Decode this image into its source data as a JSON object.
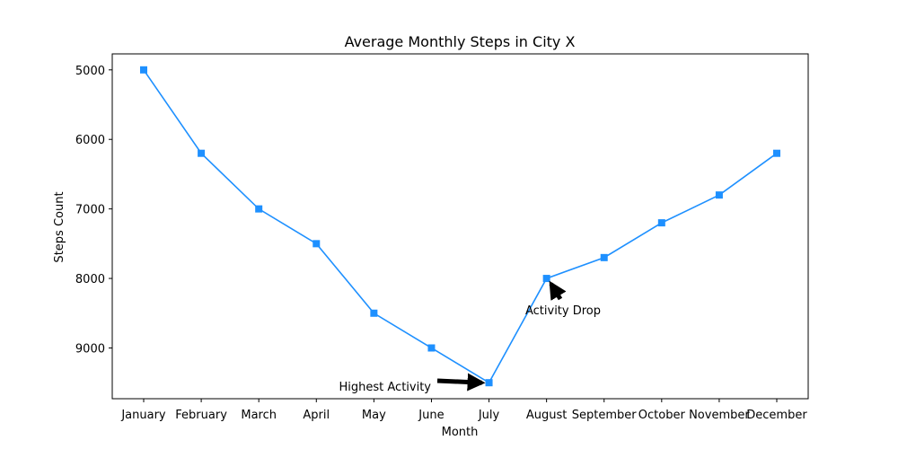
{
  "chart_data": {
    "type": "line",
    "title": "Average Monthly Steps in City X",
    "xlabel": "Month",
    "ylabel": "Steps Count",
    "categories": [
      "January",
      "February",
      "March",
      "April",
      "May",
      "June",
      "July",
      "August",
      "September",
      "October",
      "November",
      "December"
    ],
    "series": [
      {
        "values": [
          5000,
          6200,
          7000,
          7500,
          8500,
          9000,
          9500,
          8000,
          7700,
          7200,
          6800,
          6200
        ],
        "color": "#1e90ff",
        "marker": "square"
      }
    ],
    "ylim": [
      9730,
      4770
    ],
    "y_axis_inverted": true,
    "yticks": [
      5000,
      6000,
      7000,
      8000,
      9000
    ],
    "ytick_labels": [
      "5000",
      "6000",
      "7000",
      "8000",
      "9000"
    ],
    "grid": false,
    "annotations": [
      {
        "text": "Highest Activity",
        "target_category": "July",
        "target_value": 9500,
        "text_category_pos": 4.2,
        "text_value_pos": 9530
      },
      {
        "text": "Activity Drop",
        "target_category": "August",
        "target_value": 8000,
        "text_category_pos": 7.3,
        "text_value_pos": 8430
      }
    ]
  }
}
